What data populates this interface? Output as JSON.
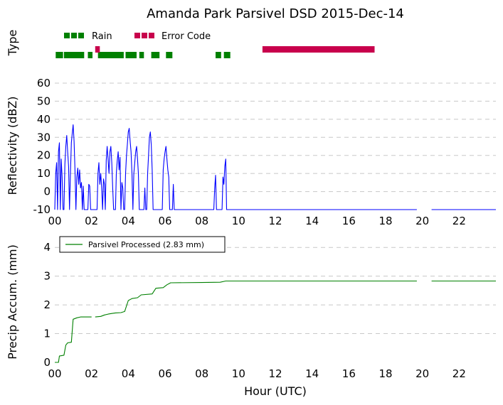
{
  "chart_data": [
    {
      "type": "timeline",
      "title": "Amanda Park Parsivel DSD 2015-Dec-14",
      "ylabel": "Type",
      "legend": [
        {
          "name": "Rain",
          "color": "#008000"
        },
        {
          "name": "Error Code",
          "color": "#c8004c"
        }
      ],
      "series": [
        {
          "name": "Rain",
          "color": "#008000",
          "intervals": [
            [
              0.05,
              0.45
            ],
            [
              0.5,
              1.6
            ],
            [
              1.8,
              2.05
            ],
            [
              2.35,
              3.75
            ],
            [
              3.85,
              4.45
            ],
            [
              4.6,
              4.85
            ],
            [
              5.25,
              5.7
            ],
            [
              6.05,
              6.4
            ],
            [
              8.75,
              9.05
            ],
            [
              9.2,
              9.55
            ]
          ]
        },
        {
          "name": "Error Code",
          "color": "#c8004c",
          "intervals": [
            [
              2.2,
              2.45
            ],
            [
              11.3,
              17.4
            ]
          ]
        }
      ]
    },
    {
      "type": "line",
      "ylabel": "Reflectivity (dBZ)",
      "xlim": [
        0,
        24
      ],
      "ylim": [
        -10,
        60
      ],
      "yticks": [
        -10,
        0,
        10,
        20,
        30,
        40,
        50,
        60
      ],
      "xtick_labels": [
        "00",
        "02",
        "04",
        "06",
        "08",
        "10",
        "12",
        "14",
        "16",
        "18",
        "20",
        "22"
      ],
      "grid": true,
      "line_color": "#0000ff",
      "series": [
        {
          "segments": [
            [
              [
                0,
                -10
              ],
              [
                0.05,
                10
              ],
              [
                0.1,
                16
              ],
              [
                0.15,
                -10
              ],
              [
                0.2,
                22
              ],
              [
                0.25,
                27
              ],
              [
                0.3,
                -10
              ],
              [
                0.35,
                18
              ],
              [
                0.4,
                8
              ],
              [
                0.45,
                -10
              ],
              [
                0.5,
                -10
              ],
              [
                0.55,
                15
              ],
              [
                0.6,
                25
              ],
              [
                0.65,
                31
              ],
              [
                0.7,
                22
              ],
              [
                0.75,
                14
              ],
              [
                0.8,
                -10
              ],
              [
                0.85,
                10
              ],
              [
                0.9,
                27
              ],
              [
                0.95,
                32
              ],
              [
                1.0,
                37
              ],
              [
                1.05,
                28
              ],
              [
                1.1,
                12
              ],
              [
                1.15,
                -10
              ],
              [
                1.2,
                8
              ],
              [
                1.25,
                13
              ],
              [
                1.3,
                4
              ],
              [
                1.35,
                12
              ],
              [
                1.4,
                2
              ],
              [
                1.45,
                5
              ],
              [
                1.5,
                -10
              ],
              [
                1.55,
                3
              ],
              [
                1.6,
                -10
              ],
              [
                1.7,
                -10
              ],
              [
                1.8,
                -10
              ],
              [
                1.85,
                4
              ],
              [
                1.9,
                3
              ],
              [
                1.95,
                -10
              ],
              [
                2.0,
                -10
              ],
              [
                2.3,
                -10
              ],
              [
                2.35,
                10
              ],
              [
                2.4,
                16
              ],
              [
                2.45,
                4
              ],
              [
                2.5,
                10
              ],
              [
                2.55,
                2
              ],
              [
                2.6,
                -10
              ],
              [
                2.65,
                7
              ],
              [
                2.7,
                4
              ],
              [
                2.75,
                -10
              ],
              [
                2.8,
                17
              ],
              [
                2.85,
                25
              ],
              [
                2.9,
                18
              ],
              [
                2.95,
                10
              ],
              [
                3.0,
                22
              ],
              [
                3.05,
                25
              ],
              [
                3.1,
                16
              ],
              [
                3.15,
                2
              ],
              [
                3.2,
                -10
              ],
              [
                3.3,
                -10
              ],
              [
                3.35,
                10
              ],
              [
                3.4,
                17
              ],
              [
                3.45,
                22
              ],
              [
                3.5,
                12
              ],
              [
                3.55,
                19
              ],
              [
                3.6,
                -10
              ],
              [
                3.65,
                5
              ],
              [
                3.7,
                2
              ],
              [
                3.75,
                -10
              ],
              [
                3.8,
                -10
              ],
              [
                3.85,
                10
              ],
              [
                3.9,
                20
              ],
              [
                3.95,
                26
              ],
              [
                4.0,
                33
              ],
              [
                4.05,
                35
              ],
              [
                4.1,
                28
              ],
              [
                4.15,
                22
              ],
              [
                4.2,
                10
              ],
              [
                4.25,
                -10
              ],
              [
                4.3,
                10
              ],
              [
                4.35,
                16
              ],
              [
                4.4,
                22
              ],
              [
                4.45,
                25
              ],
              [
                4.5,
                18
              ],
              [
                4.55,
                10
              ],
              [
                4.6,
                -10
              ],
              [
                4.7,
                -10
              ],
              [
                4.85,
                -10
              ],
              [
                4.9,
                2
              ],
              [
                4.95,
                -10
              ],
              [
                5.0,
                -10
              ],
              [
                5.05,
                10
              ],
              [
                5.1,
                20
              ],
              [
                5.15,
                30
              ],
              [
                5.2,
                33
              ],
              [
                5.25,
                26
              ],
              [
                5.3,
                12
              ],
              [
                5.35,
                -10
              ],
              [
                5.7,
                -10
              ],
              [
                5.85,
                -10
              ],
              [
                5.9,
                12
              ],
              [
                5.95,
                18
              ],
              [
                6.0,
                22
              ],
              [
                6.05,
                25
              ],
              [
                6.1,
                18
              ],
              [
                6.15,
                12
              ],
              [
                6.2,
                8
              ],
              [
                6.25,
                -10
              ],
              [
                6.4,
                -10
              ],
              [
                6.45,
                4
              ],
              [
                6.5,
                -10
              ],
              [
                8.65,
                -10
              ],
              [
                8.7,
                2
              ],
              [
                8.75,
                9
              ],
              [
                8.8,
                -10
              ],
              [
                9.1,
                -10
              ],
              [
                9.15,
                8
              ],
              [
                9.2,
                4
              ],
              [
                9.25,
                14
              ],
              [
                9.3,
                18
              ],
              [
                9.35,
                -10
              ],
              [
                19.7,
                -10
              ]
            ],
            [
              [
                20.5,
                -10
              ],
              [
                24,
                -10
              ]
            ]
          ]
        }
      ]
    },
    {
      "type": "line",
      "title": "",
      "xlabel": "Hour (UTC)",
      "ylabel": "Precip Accum. (mm)",
      "xlim": [
        0,
        24
      ],
      "ylim": [
        0,
        4.5
      ],
      "yticks": [
        0,
        1,
        2,
        3,
        4
      ],
      "xtick_labels": [
        "00",
        "02",
        "04",
        "06",
        "08",
        "10",
        "12",
        "14",
        "16",
        "18",
        "20",
        "22"
      ],
      "grid": true,
      "legend": {
        "position": "top-left",
        "entries": [
          "Parsivel Processed (2.83 mm)"
        ]
      },
      "series": [
        {
          "name": "Parsivel Processed (2.83 mm)",
          "color": "#008000",
          "segments": [
            [
              [
                0,
                0
              ],
              [
                0.2,
                0
              ],
              [
                0.25,
                0.22
              ],
              [
                0.5,
                0.25
              ],
              [
                0.6,
                0.6
              ],
              [
                0.7,
                0.68
              ],
              [
                0.9,
                0.7
              ],
              [
                1.0,
                1.5
              ],
              [
                1.2,
                1.55
              ],
              [
                1.4,
                1.58
              ],
              [
                1.6,
                1.58
              ],
              [
                2.0,
                1.58
              ]
            ],
            [
              [
                2.2,
                1.58
              ],
              [
                2.5,
                1.6
              ],
              [
                2.7,
                1.65
              ],
              [
                2.9,
                1.68
              ],
              [
                3.1,
                1.7
              ],
              [
                3.3,
                1.72
              ],
              [
                3.6,
                1.73
              ],
              [
                3.8,
                1.77
              ],
              [
                4.0,
                2.15
              ],
              [
                4.2,
                2.22
              ],
              [
                4.5,
                2.25
              ],
              [
                4.7,
                2.35
              ],
              [
                5.3,
                2.38
              ],
              [
                5.5,
                2.58
              ],
              [
                5.9,
                2.6
              ],
              [
                6.1,
                2.7
              ],
              [
                6.3,
                2.77
              ],
              [
                8.0,
                2.78
              ],
              [
                9.0,
                2.79
              ],
              [
                9.3,
                2.83
              ],
              [
                19.7,
                2.83
              ]
            ],
            [
              [
                20.5,
                2.83
              ],
              [
                24,
                2.83
              ]
            ]
          ]
        }
      ]
    }
  ]
}
